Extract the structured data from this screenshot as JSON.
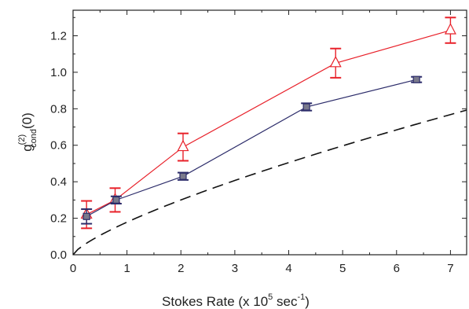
{
  "chart_data": {
    "type": "scatter",
    "title": "",
    "xlabel": {
      "main": "Stokes Rate (x 10",
      "exp": "5",
      "unit": " sec",
      "unit_exp": "-1",
      "close": ")"
    },
    "ylabel": {
      "base": "g",
      "sup": "(2)",
      "sub": "cond",
      "arg": "(0)"
    },
    "xlim": [
      0,
      7.3
    ],
    "ylim": [
      0,
      1.34
    ],
    "xticks": [
      0,
      1,
      2,
      3,
      4,
      5,
      6,
      7
    ],
    "yticks": [
      0.0,
      0.2,
      0.4,
      0.6,
      0.8,
      1.0,
      1.2
    ],
    "xtick_labels": [
      "0",
      "1",
      "2",
      "3",
      "4",
      "5",
      "6",
      "7"
    ],
    "ytick_labels": [
      "0.0",
      "0.2",
      "0.4",
      "0.6",
      "0.8",
      "1.0",
      "1.2"
    ],
    "grid": false,
    "series": [
      {
        "color": "#e8212a",
        "marker": "open-triangle",
        "line": "solid",
        "points": [
          {
            "x": 0.25,
            "y": 0.22,
            "err": 0.075
          },
          {
            "x": 0.78,
            "y": 0.3,
            "err": 0.065
          },
          {
            "x": 2.04,
            "y": 0.59,
            "err": 0.075
          },
          {
            "x": 4.87,
            "y": 1.05,
            "err": 0.08
          },
          {
            "x": 7.0,
            "y": 1.23,
            "err": 0.07
          }
        ]
      },
      {
        "color": "#2c2c6a",
        "marker": "filled-square",
        "line": "solid",
        "points": [
          {
            "x": 0.25,
            "y": 0.21,
            "err": 0.04
          },
          {
            "x": 0.8,
            "y": 0.3,
            "err": 0.02
          },
          {
            "x": 2.04,
            "y": 0.43,
            "err": 0.02
          },
          {
            "x": 4.33,
            "y": 0.81,
            "err": 0.02
          },
          {
            "x": 6.37,
            "y": 0.96,
            "err": 0.015
          }
        ]
      },
      {
        "color": "#111111",
        "marker": "none",
        "line": "dashed",
        "curve": {
          "coef": 0.1785,
          "power": 0.75,
          "x_range": [
            0,
            7.3
          ]
        }
      }
    ]
  }
}
